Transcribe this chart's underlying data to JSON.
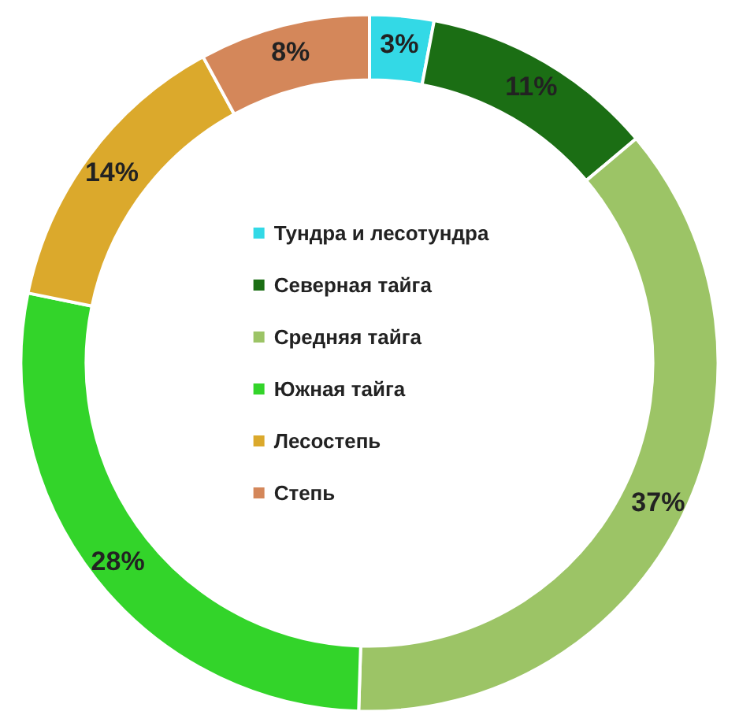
{
  "chart_data": {
    "type": "donut",
    "categories": [
      "Тундра и лесотундра",
      "Северная тайга",
      "Средняя тайга",
      "Южная тайга",
      "Лесостепь",
      "Степь"
    ],
    "values": [
      3,
      11,
      37,
      28,
      14,
      8
    ],
    "colors": [
      "#33d9e6",
      "#1b6e14",
      "#9cc466",
      "#33d42a",
      "#dba92c",
      "#d4875a"
    ],
    "value_labels": [
      "3%",
      "11%",
      "37%",
      "28%",
      "14%",
      "8%"
    ],
    "legend": "center"
  }
}
